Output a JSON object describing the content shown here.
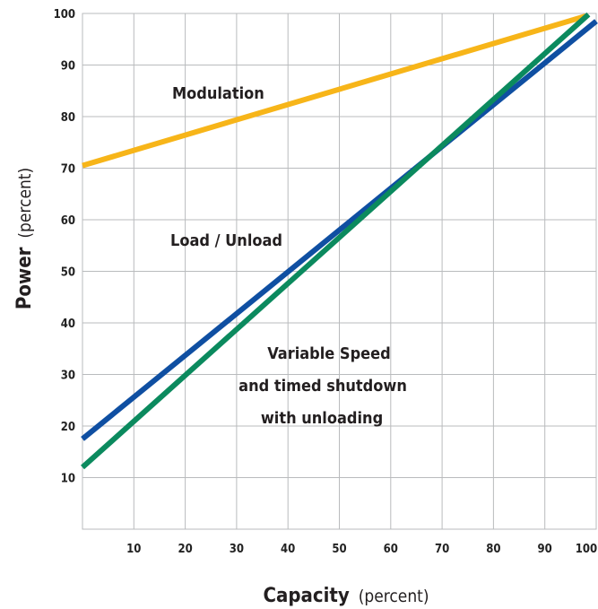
{
  "chart_data": {
    "type": "line",
    "xlabel": "Capacity",
    "xlabel_unit": "(percent)",
    "ylabel": "Power",
    "ylabel_unit": "(percent)",
    "xlim": [
      0,
      100
    ],
    "ylim": [
      0,
      100
    ],
    "x_ticks": [
      10,
      20,
      30,
      40,
      50,
      60,
      70,
      80,
      90,
      100
    ],
    "y_ticks": [
      10,
      20,
      30,
      40,
      50,
      60,
      70,
      80,
      90,
      100
    ],
    "grid": true,
    "series": [
      {
        "name": "Modulation",
        "color": "#f7b519",
        "x": [
          0,
          98
        ],
        "y": [
          70.5,
          99.5
        ]
      },
      {
        "name": "Load / Unload",
        "color": "#0f4fa2",
        "x": [
          0,
          100
        ],
        "y": [
          17.5,
          98.5
        ]
      },
      {
        "name_lines": [
          "Variable Speed",
          "and timed shutdown",
          "with unloading"
        ],
        "color": "#0b8a5e",
        "x": [
          0,
          98.5
        ],
        "y": [
          12,
          99.8
        ]
      }
    ]
  }
}
